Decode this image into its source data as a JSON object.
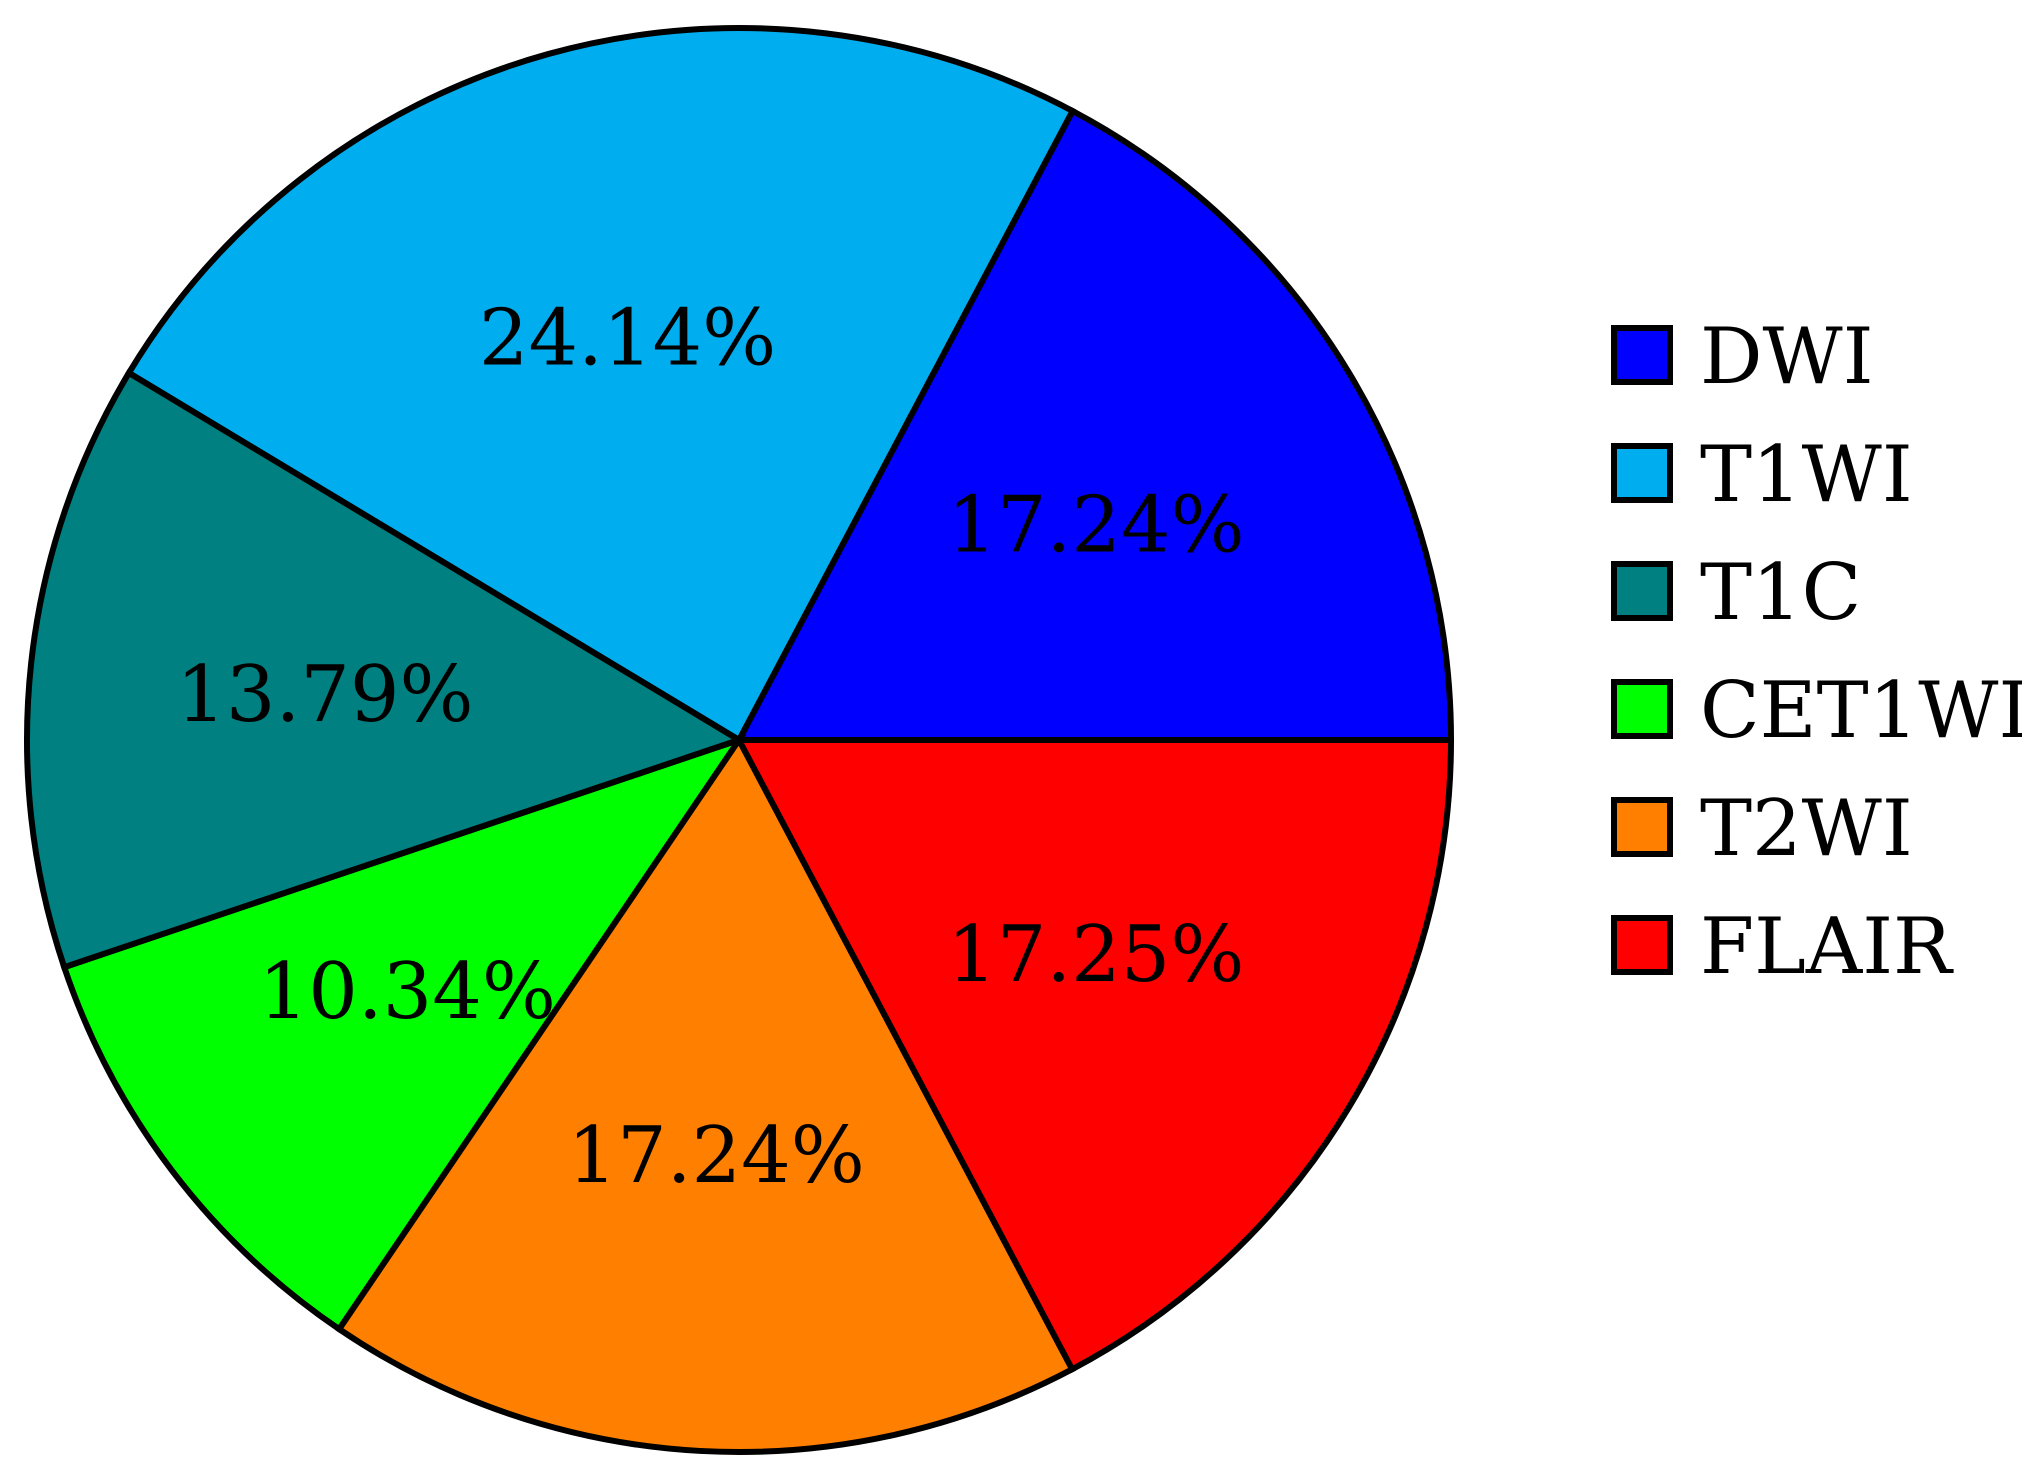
{
  "chart_data": {
    "type": "pie",
    "title": "",
    "legend_position": "right",
    "slices": [
      {
        "name": "DWI",
        "value": 17.24,
        "label": "17.24%",
        "color": "#0000ff"
      },
      {
        "name": "T1WI",
        "value": 24.14,
        "label": "24.14%",
        "color": "#00aeef"
      },
      {
        "name": "T1C",
        "value": 13.79,
        "label": "13.79%",
        "color": "#008080"
      },
      {
        "name": "CET1WI",
        "value": 10.34,
        "label": "10.34%",
        "color": "#00ff00"
      },
      {
        "name": "T2WI",
        "value": 17.24,
        "label": "17.24%",
        "color": "#ff8000"
      },
      {
        "name": "FLAIR",
        "value": 17.25,
        "label": "17.25%",
        "color": "#ff0000"
      }
    ]
  }
}
